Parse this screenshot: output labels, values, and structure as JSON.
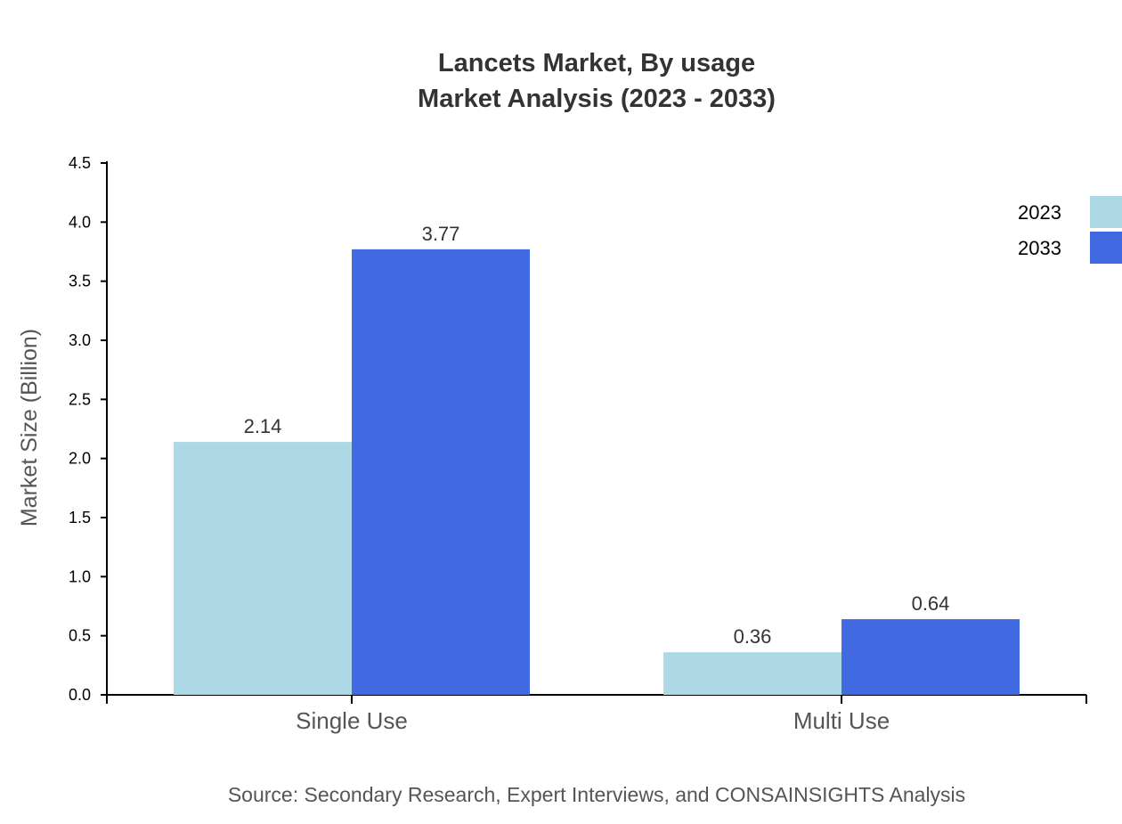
{
  "chart_data": {
    "type": "bar",
    "title": "Lancets Market, By usage",
    "subtitle": "Market Analysis (2023 - 2033)",
    "xlabel": "",
    "ylabel": "Market Size (Billion)",
    "categories": [
      "Single Use",
      "Multi Use"
    ],
    "series": [
      {
        "name": "2023",
        "values": [
          2.14,
          0.36
        ],
        "color": "#ADD8E6"
      },
      {
        "name": "2033",
        "values": [
          3.77,
          0.64
        ],
        "color": "#4169E1"
      }
    ],
    "data_labels": [
      [
        "2.14",
        "0.36"
      ],
      [
        "3.77",
        "0.64"
      ]
    ],
    "ylim": [
      0,
      4.5
    ],
    "yticks": [
      "0.0",
      "0.5",
      "1.0",
      "1.5",
      "2.0",
      "2.5",
      "3.0",
      "3.5",
      "4.0",
      "4.5"
    ],
    "grid": false,
    "legend_position": "top-right",
    "source": "Source: Secondary Research, Expert Interviews, and CONSAINSIGHTS Analysis"
  }
}
